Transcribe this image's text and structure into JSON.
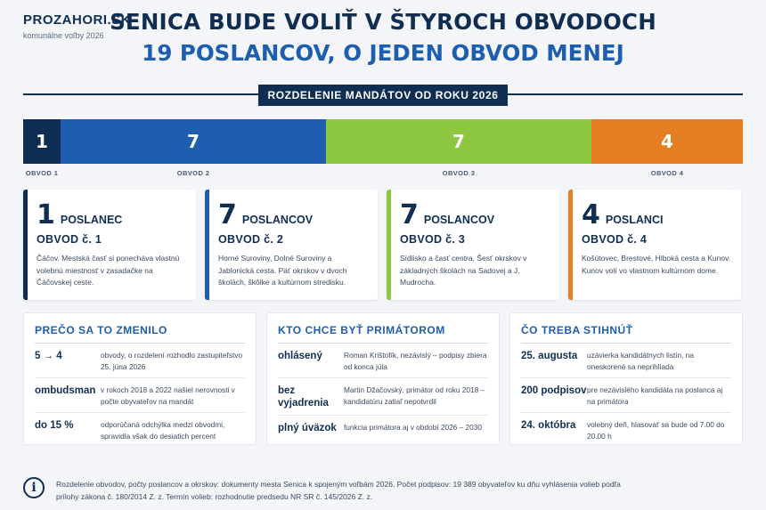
{
  "brand": {
    "name": "PROZAHORI.SK",
    "subtitle": "komunálne voľby 2026"
  },
  "headline": {
    "line1": "SENICA BUDE VOLIŤ V ŠTYROCH OBVODOCH",
    "line2": "19 POSLANCOV, O JEDEN OBVOD MENEJ"
  },
  "section_label": "ROZDELENIE MANDÁTOV OD ROKU 2026",
  "seats_bar": {
    "segments": [
      {
        "value": "1",
        "label": "OBVOD 1",
        "color": "#0f2d52"
      },
      {
        "value": "7",
        "label": "OBVOD 2",
        "color": "#1d5fae"
      },
      {
        "value": "7",
        "label": "OBVOD 3",
        "color": "#8dc63f"
      },
      {
        "value": "4",
        "label": "OBVOD 4",
        "color": "#e67e22"
      }
    ]
  },
  "cards": [
    {
      "num": "1",
      "unit": "POSLANEC",
      "obvod": "OBVOD č. 1",
      "desc": "Čáčov. Mestská časť si ponecháva vlastnú volebnú miestnosť v zasadačke na Čáčovskej ceste.",
      "color": "#0f2d52"
    },
    {
      "num": "7",
      "unit": "POSLANCOV",
      "obvod": "OBVOD č. 2",
      "desc": "Horné Suroviny, Dolné Suroviny a Jablonická cesta. Päť okrskov v dvoch školách, škôlke a kultúrnom stredisku.",
      "color": "#1d5fae"
    },
    {
      "num": "7",
      "unit": "POSLANCOV",
      "obvod": "OBVOD č. 3",
      "desc": "Sídlisko a časť centra. Šesť okrskov v základných školách na Sadovej a J. Mudrocha.",
      "color": "#8dc63f"
    },
    {
      "num": "4",
      "unit": "POSLANCI",
      "obvod": "OBVOD č. 4",
      "desc": "Košútovec, Brestové, Hlboká cesta a Kunov. Kunov volí vo vlastnom kultúrnom dome.",
      "color": "#e67e22"
    }
  ],
  "panels": [
    {
      "title": "PREČO SA TO ZMENILO",
      "rows": [
        {
          "key": "5 → 4",
          "value": "obvody, o rozdelení rozhodlo zastupiteľstvo 25. júna 2026"
        },
        {
          "key": "ombudsman",
          "value": "v rokoch 2018 a 2022 našiel nerovnosti v počte obyvateľov na mandát"
        },
        {
          "key": "do 15 %",
          "value": "odporúčaná odchýlka medzi obvodmi, spravidla však do desiatich percent"
        }
      ]
    },
    {
      "title": "KTO CHCE BYŤ PRIMÁTOROM",
      "rows": [
        {
          "key": "ohlásený",
          "value": "Roman Krištofík, nezávislý – podpisy zbiera od konca júla"
        },
        {
          "key": "bez vyjadrenia",
          "value": "Martin Džačovský, primátor od roku 2018 – kandidatúru zatiaľ nepotvrdil"
        },
        {
          "key": "plný úväzok",
          "value": "funkcia primátora aj v období 2026 – 2030"
        }
      ]
    },
    {
      "title": "ČO TREBA STIHNÚŤ",
      "rows": [
        {
          "key": "25. augusta",
          "value": "uzávierka kandidátnych listín, na oneskorené sa neprihliada"
        },
        {
          "key": "200 podpisov",
          "value": "pre nezávislého kandidáta na poslanca aj na primátora"
        },
        {
          "key": "24. októbra",
          "value": "volebný deň, hlasovať sa bude od 7.00 do 20.00 h"
        }
      ]
    }
  ],
  "footer": {
    "icon": "info-icon",
    "text": "Rozdelenie obvodov, počty poslancov a okrskov: dokumenty mesta Senica k spojeným voľbám 2026. Počet podpisov: 19 389 obyvateľov ku dňu vyhlásenia volieb podľa prílohy zákona č. 180/2014 Z. z. Termín volieb: rozhodnutie predsedu NR SR č. 145/2026 Z. z."
  }
}
